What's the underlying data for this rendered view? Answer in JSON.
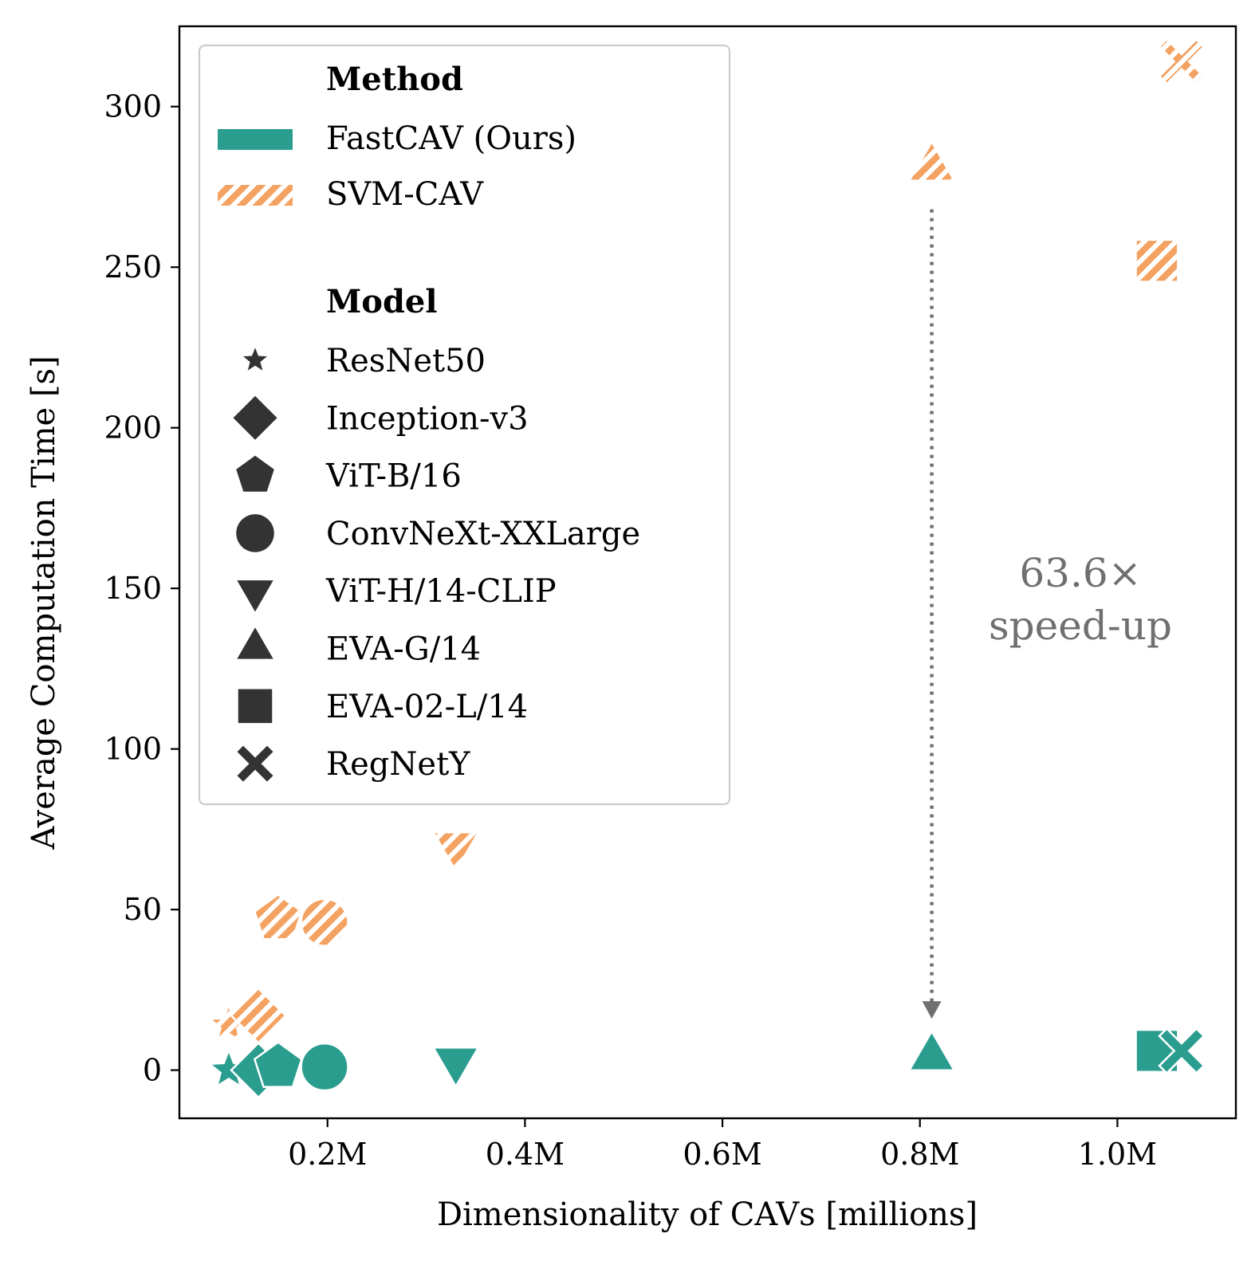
{
  "chart_data": {
    "type": "scatter",
    "xlabel": "Dimensionality of CAVs [millions]",
    "ylabel": "Average Computation Time [s]",
    "xlim": [
      0.05,
      1.12
    ],
    "ylim": [
      -15,
      325
    ],
    "x_ticks": [
      {
        "value": 0.2,
        "label": "0.2M"
      },
      {
        "value": 0.4,
        "label": "0.4M"
      },
      {
        "value": 0.6,
        "label": "0.6M"
      },
      {
        "value": 0.8,
        "label": "0.8M"
      },
      {
        "value": 1.0,
        "label": "1.0M"
      }
    ],
    "y_ticks": [
      {
        "value": 0,
        "label": "0"
      },
      {
        "value": 50,
        "label": "50"
      },
      {
        "value": 100,
        "label": "100"
      },
      {
        "value": 150,
        "label": "150"
      },
      {
        "value": 200,
        "label": "200"
      },
      {
        "value": 250,
        "label": "250"
      },
      {
        "value": 300,
        "label": "300"
      }
    ],
    "grid": false,
    "legend": {
      "placement": "top-left",
      "method_heading": "Method",
      "model_heading": "Model",
      "methods": [
        {
          "key": "fastcav",
          "label": "FastCAV (Ours)",
          "color": "#2a9d8f",
          "hatched": false
        },
        {
          "key": "svm",
          "label": "SVM-CAV",
          "color": "#f4a261",
          "hatched": true
        }
      ],
      "models": [
        {
          "label": "ResNet50",
          "marker": "star"
        },
        {
          "label": "Inception-v3",
          "marker": "diamond"
        },
        {
          "label": "ViT-B/16",
          "marker": "pentagon"
        },
        {
          "label": "ConvNeXt-XXLarge",
          "marker": "circle"
        },
        {
          "label": "ViT-H/14-CLIP",
          "marker": "triangle-down"
        },
        {
          "label": "EVA-G/14",
          "marker": "triangle-up"
        },
        {
          "label": "EVA-02-L/14",
          "marker": "square"
        },
        {
          "label": "RegNetY",
          "marker": "x"
        }
      ]
    },
    "series": [
      {
        "method": "SVM-CAV",
        "color": "#f4a261",
        "hatched": true,
        "points": [
          {
            "model": "ResNet50",
            "x": 0.1,
            "y": 14
          },
          {
            "model": "Inception-v3",
            "x": 0.13,
            "y": 17
          },
          {
            "model": "ViT-B/16",
            "x": 0.15,
            "y": 47
          },
          {
            "model": "ConvNeXt-XXLarge",
            "x": 0.197,
            "y": 46
          },
          {
            "model": "ViT-H/14-CLIP",
            "x": 0.33,
            "y": 70
          },
          {
            "model": "EVA-G/14",
            "x": 0.812,
            "y": 281
          },
          {
            "model": "EVA-02-L/14",
            "x": 1.04,
            "y": 252
          },
          {
            "model": "RegNetY",
            "x": 1.065,
            "y": 314
          }
        ]
      },
      {
        "method": "FastCAV (Ours)",
        "color": "#2a9d8f",
        "hatched": false,
        "points": [
          {
            "model": "ResNet50",
            "x": 0.1,
            "y": 0
          },
          {
            "model": "Inception-v3",
            "x": 0.13,
            "y": 0
          },
          {
            "model": "ViT-B/16",
            "x": 0.15,
            "y": 1
          },
          {
            "model": "ConvNeXt-XXLarge",
            "x": 0.197,
            "y": 1
          },
          {
            "model": "ViT-H/14-CLIP",
            "x": 0.33,
            "y": 3
          },
          {
            "model": "EVA-G/14",
            "x": 0.812,
            "y": 4
          },
          {
            "model": "EVA-02-L/14",
            "x": 1.04,
            "y": 6
          },
          {
            "model": "RegNetY",
            "x": 1.065,
            "y": 6
          }
        ]
      }
    ],
    "annotation": {
      "line1": "63.6×",
      "line2": "speed-up",
      "arrow_x": 0.812,
      "arrow_from_y": 268,
      "arrow_to_y": 16,
      "color": "#6f6f6f"
    }
  }
}
